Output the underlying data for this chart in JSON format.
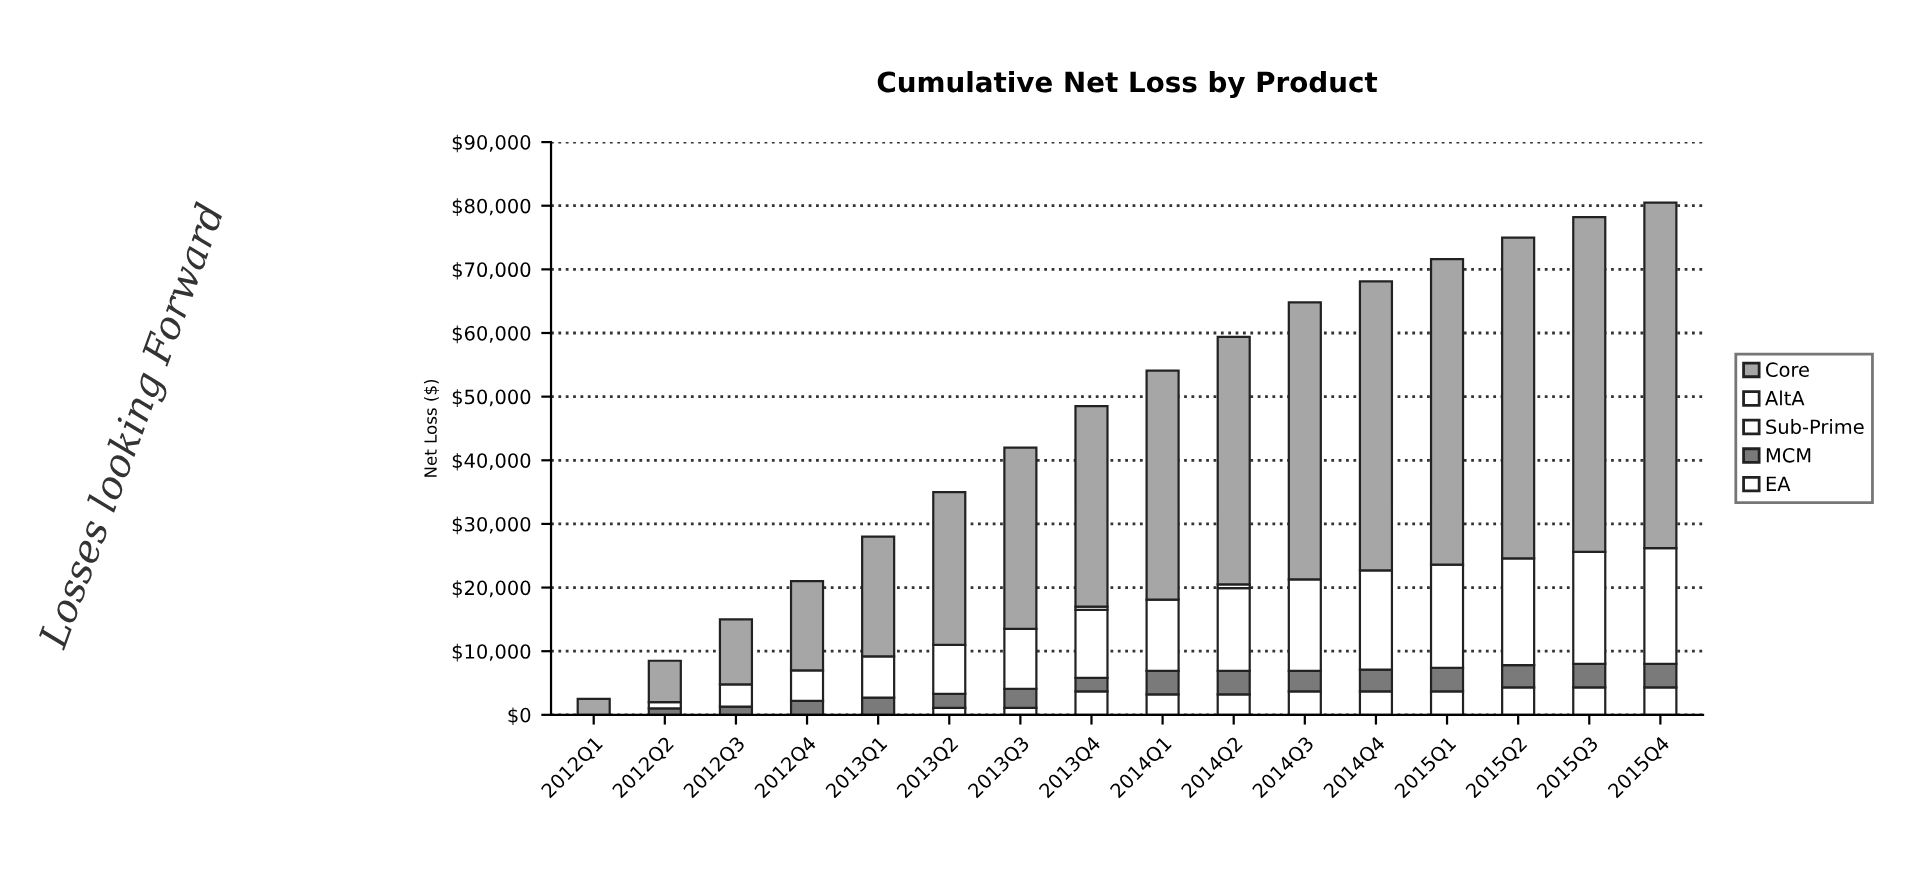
{
  "chart_data": {
    "type": "bar",
    "stacked": true,
    "title": "Cumulative Net Loss by Product",
    "ylabel": "Net Loss ($)",
    "categories": [
      "2012Q1",
      "2012Q2",
      "2012Q3",
      "2012Q4",
      "2013Q1",
      "2013Q2",
      "2013Q3",
      "2013Q4",
      "2014Q1",
      "2014Q2",
      "2014Q3",
      "2014Q4",
      "2015Q1",
      "2015Q2",
      "2015Q3",
      "2015Q4"
    ],
    "series": [
      {
        "name": "EA",
        "color": "#ffffff",
        "values": [
          0,
          0,
          0,
          0,
          0,
          1100,
          1100,
          3700,
          3200,
          3200,
          3700,
          3700,
          3700,
          4300,
          4300,
          4300
        ]
      },
      {
        "name": "MCM",
        "color": "#7a7a7a",
        "values": [
          0,
          1000,
          1300,
          2200,
          2700,
          2200,
          3000,
          2100,
          3700,
          3700,
          3200,
          3400,
          3700,
          3500,
          3700,
          3700
        ]
      },
      {
        "name": "Sub-Prime",
        "color": "#ffffff",
        "values": [
          0,
          1000,
          3500,
          4800,
          6500,
          7700,
          9400,
          10700,
          11200,
          13000,
          14400,
          15600,
          16200,
          16800,
          17600,
          18200
        ]
      },
      {
        "name": "AltA",
        "color": "#ffffff",
        "values": [
          0,
          0,
          0,
          0,
          0,
          0,
          0,
          500,
          0,
          600,
          0,
          0,
          0,
          0,
          0,
          0
        ]
      },
      {
        "name": "Core",
        "color": "#a6a6a6",
        "values": [
          2500,
          6500,
          10200,
          14000,
          18800,
          24000,
          28500,
          31500,
          36000,
          38900,
          43500,
          45400,
          48000,
          50400,
          52600,
          54300
        ]
      }
    ],
    "ylim": [
      0,
      90000
    ],
    "yticks": [
      {
        "value": 0,
        "label": "$0"
      },
      {
        "value": 10000,
        "label": "$10,000"
      },
      {
        "value": 20000,
        "label": "$20,000"
      },
      {
        "value": 30000,
        "label": "$30,000"
      },
      {
        "value": 40000,
        "label": "$40,000"
      },
      {
        "value": 50000,
        "label": "$50,000"
      },
      {
        "value": 60000,
        "label": "$60,000"
      },
      {
        "value": 70000,
        "label": "$70,000"
      },
      {
        "value": 80000,
        "label": "$80,000"
      },
      {
        "value": 90000,
        "label": "$90,000"
      }
    ],
    "grid": "y",
    "legend": "right",
    "annotations": [
      "Losses looking Forward"
    ]
  }
}
